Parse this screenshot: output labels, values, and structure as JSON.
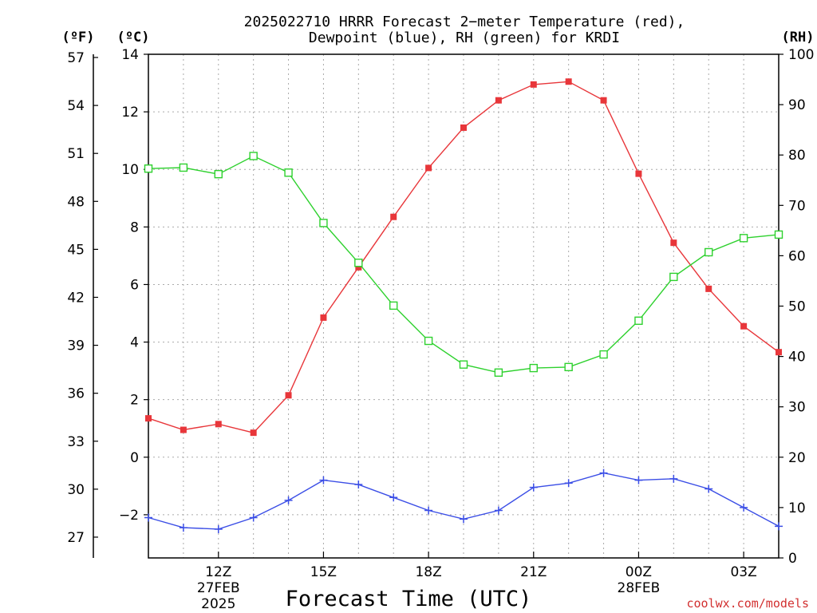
{
  "title_line1": "2025022710 HRRR Forecast 2−meter Temperature (red),",
  "title_line2": "Dewpoint (blue), RH (green) for KRDI",
  "unit_f": "(ºF)",
  "unit_c": "(ºC)",
  "unit_rh": "(RH)",
  "credit": "coolwx.com/models",
  "chart_data": {
    "type": "line",
    "title": "2025022710 HRRR Forecast 2−meter Temperature (red), Dewpoint (blue), RH (green) for KRDI",
    "xlabel": "Forecast Time (UTC)",
    "x_hours": [
      10,
      11,
      12,
      13,
      14,
      15,
      16,
      17,
      18,
      19,
      20,
      21,
      22,
      23,
      24,
      25,
      26,
      27,
      28
    ],
    "x_range_hours": [
      10,
      28
    ],
    "x_tick_hours": [
      12,
      15,
      18,
      21,
      24,
      27
    ],
    "x_tick_labels": [
      "12Z",
      "15Z",
      "18Z",
      "21Z",
      "00Z",
      "03Z"
    ],
    "date_labels": [
      {
        "hour": 12,
        "lines": [
          "27FEB",
          "2025"
        ]
      },
      {
        "hour": 24,
        "lines": [
          "28FEB"
        ]
      }
    ],
    "left_axis_c": {
      "label": "(ºC)",
      "ylim": [
        -3.5,
        14
      ],
      "ticks": [
        14,
        12,
        10,
        8,
        6,
        4,
        2,
        0,
        -2
      ]
    },
    "left_axis_f": {
      "label": "(ºF)",
      "ticks": [
        57,
        54,
        51,
        48,
        45,
        42,
        39,
        36,
        33,
        30,
        27
      ]
    },
    "right_axis_rh": {
      "label": "(RH)",
      "ylim": [
        0,
        100
      ],
      "ticks": [
        100,
        90,
        80,
        70,
        60,
        50,
        40,
        30,
        20,
        10,
        0
      ]
    },
    "grid": true,
    "series": [
      {
        "name": "Temperature (red)",
        "axis": "celsius",
        "color": "#e8363a",
        "marker": "filled-square",
        "values": [
          1.35,
          0.95,
          1.15,
          0.85,
          2.15,
          4.85,
          6.6,
          8.35,
          10.05,
          11.45,
          12.4,
          12.95,
          13.05,
          12.4,
          9.85,
          7.45,
          5.85,
          4.55,
          3.65
        ]
      },
      {
        "name": "Dewpoint (blue)",
        "axis": "celsius",
        "color": "#3b4ee6",
        "marker": "plus",
        "values": [
          -2.1,
          -2.45,
          -2.5,
          -2.1,
          -1.5,
          -0.8,
          -0.95,
          -1.4,
          -1.85,
          -2.15,
          -1.85,
          -1.05,
          -0.9,
          -0.55,
          -0.8,
          -0.75,
          -1.1,
          -1.75,
          -2.4
        ]
      },
      {
        "name": "RH (green)",
        "axis": "rh",
        "color": "#2ed12e",
        "marker": "open-square",
        "values": [
          77.3,
          77.5,
          76.2,
          79.8,
          76.5,
          66.5,
          58.6,
          50.1,
          43.1,
          38.4,
          36.8,
          37.7,
          37.9,
          40.4,
          47.1,
          55.8,
          60.7,
          63.5,
          64.2
        ]
      }
    ]
  }
}
